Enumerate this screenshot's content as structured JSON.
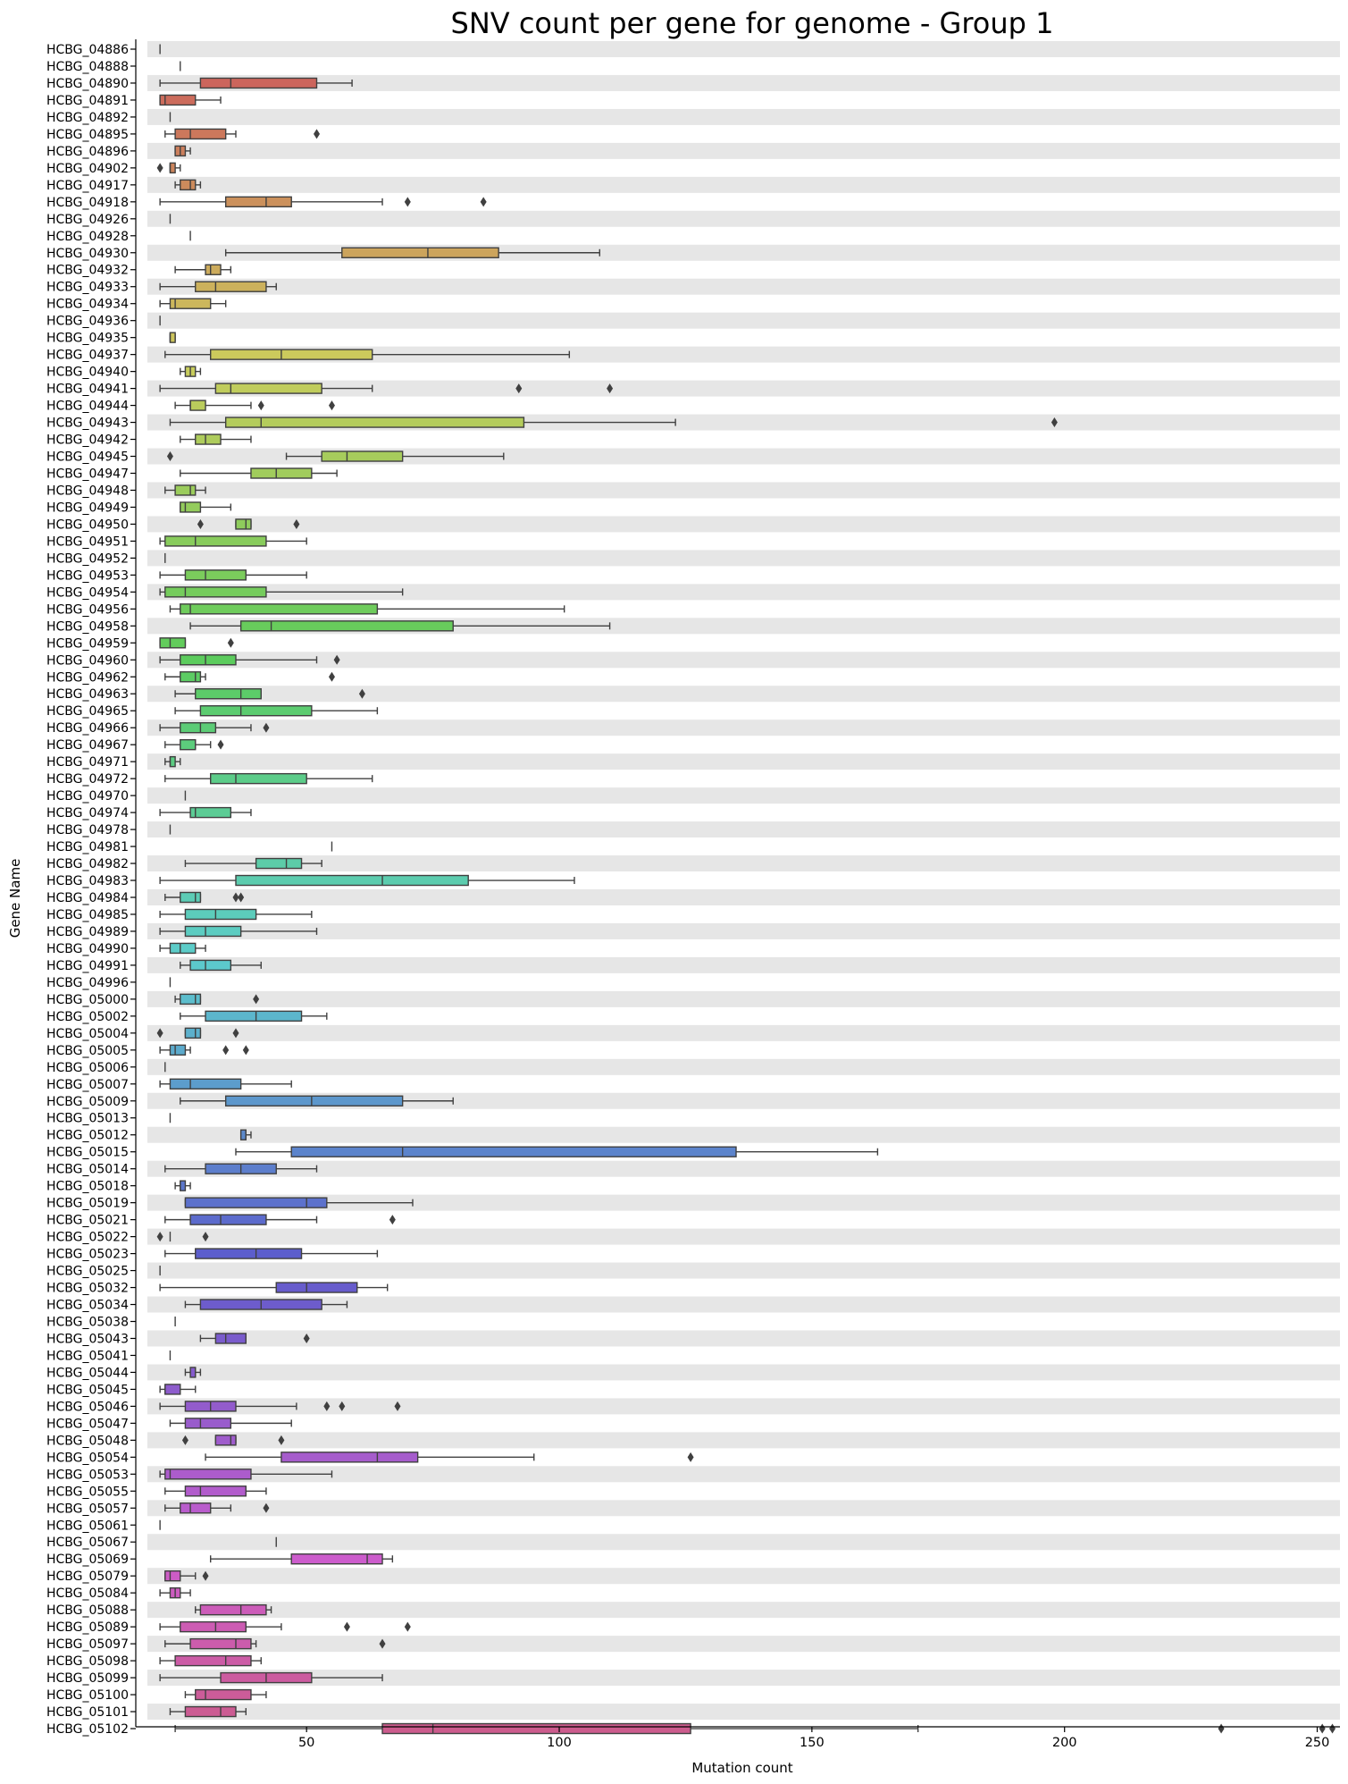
{
  "chart_data": {
    "type": "boxplot",
    "orientation": "horizontal",
    "title": "SNV count per gene for genome - Group 1",
    "xlabel": "Mutation count",
    "ylabel": "Gene Name",
    "xlim": [
      18.5,
      254.5
    ],
    "xticks": [
      50,
      100,
      150,
      200,
      250
    ],
    "alternating_bands": true,
    "genes": [
      {
        "name": "HCBG_04886",
        "min": 21,
        "q1": 21,
        "med": 21,
        "q3": 21,
        "max": 21,
        "fliers": []
      },
      {
        "name": "HCBG_04888",
        "min": 25,
        "q1": 25,
        "med": 25,
        "q3": 25,
        "max": 25,
        "fliers": []
      },
      {
        "name": "HCBG_04890",
        "min": 21,
        "q1": 29,
        "med": 35,
        "q3": 52,
        "max": 59,
        "fliers": []
      },
      {
        "name": "HCBG_04891",
        "min": 21,
        "q1": 21,
        "med": 22,
        "q3": 28,
        "max": 33,
        "fliers": []
      },
      {
        "name": "HCBG_04892",
        "min": 23,
        "q1": 23,
        "med": 23,
        "q3": 23,
        "max": 23,
        "fliers": []
      },
      {
        "name": "HCBG_04895",
        "min": 22,
        "q1": 24,
        "med": 27,
        "q3": 34,
        "max": 36,
        "fliers": [
          52
        ]
      },
      {
        "name": "HCBG_04896",
        "min": 24,
        "q1": 24,
        "med": 25,
        "q3": 26,
        "max": 27,
        "fliers": []
      },
      {
        "name": "HCBG_04902",
        "min": 23,
        "q1": 23,
        "med": 23,
        "q3": 24,
        "max": 25,
        "fliers": [
          21
        ]
      },
      {
        "name": "HCBG_04917",
        "min": 24,
        "q1": 25,
        "med": 27,
        "q3": 28,
        "max": 29,
        "fliers": []
      },
      {
        "name": "HCBG_04918",
        "min": 21,
        "q1": 34,
        "med": 42,
        "q3": 47,
        "max": 65,
        "fliers": [
          70,
          85
        ]
      },
      {
        "name": "HCBG_04926",
        "min": 23,
        "q1": 23,
        "med": 23,
        "q3": 23,
        "max": 23,
        "fliers": []
      },
      {
        "name": "HCBG_04928",
        "min": 27,
        "q1": 27,
        "med": 27,
        "q3": 27,
        "max": 27,
        "fliers": []
      },
      {
        "name": "HCBG_04930",
        "min": 34,
        "q1": 57,
        "med": 74,
        "q3": 88,
        "max": 108,
        "fliers": []
      },
      {
        "name": "HCBG_04932",
        "min": 24,
        "q1": 30,
        "med": 31,
        "q3": 33,
        "max": 35,
        "fliers": []
      },
      {
        "name": "HCBG_04933",
        "min": 21,
        "q1": 28,
        "med": 32,
        "q3": 42,
        "max": 44,
        "fliers": []
      },
      {
        "name": "HCBG_04934",
        "min": 21,
        "q1": 23,
        "med": 24,
        "q3": 31,
        "max": 34,
        "fliers": []
      },
      {
        "name": "HCBG_04936",
        "min": 21,
        "q1": 21,
        "med": 21,
        "q3": 21,
        "max": 21,
        "fliers": []
      },
      {
        "name": "HCBG_04935",
        "min": 23,
        "q1": 23,
        "med": 23,
        "q3": 24,
        "max": 24,
        "fliers": []
      },
      {
        "name": "HCBG_04937",
        "min": 22,
        "q1": 31,
        "med": 45,
        "q3": 63,
        "max": 102,
        "fliers": []
      },
      {
        "name": "HCBG_04940",
        "min": 25,
        "q1": 26,
        "med": 27,
        "q3": 28,
        "max": 29,
        "fliers": []
      },
      {
        "name": "HCBG_04941",
        "min": 21,
        "q1": 32,
        "med": 35,
        "q3": 53,
        "max": 63,
        "fliers": [
          92,
          110
        ]
      },
      {
        "name": "HCBG_04944",
        "min": 24,
        "q1": 27,
        "med": 27,
        "q3": 30,
        "max": 39,
        "fliers": [
          41,
          55
        ]
      },
      {
        "name": "HCBG_04943",
        "min": 23,
        "q1": 34,
        "med": 41,
        "q3": 93,
        "max": 123,
        "fliers": [
          198
        ]
      },
      {
        "name": "HCBG_04942",
        "min": 25,
        "q1": 28,
        "med": 30,
        "q3": 33,
        "max": 39,
        "fliers": []
      },
      {
        "name": "HCBG_04945",
        "min": 46,
        "q1": 53,
        "med": 58,
        "q3": 69,
        "max": 89,
        "fliers": [
          23
        ]
      },
      {
        "name": "HCBG_04947",
        "min": 25,
        "q1": 39,
        "med": 44,
        "q3": 51,
        "max": 56,
        "fliers": []
      },
      {
        "name": "HCBG_04948",
        "min": 22,
        "q1": 24,
        "med": 27,
        "q3": 28,
        "max": 30,
        "fliers": []
      },
      {
        "name": "HCBG_04949",
        "min": 25,
        "q1": 25,
        "med": 26,
        "q3": 29,
        "max": 35,
        "fliers": []
      },
      {
        "name": "HCBG_04950",
        "min": 36,
        "q1": 36,
        "med": 38,
        "q3": 39,
        "max": 39,
        "fliers": [
          29,
          48
        ]
      },
      {
        "name": "HCBG_04951",
        "min": 21,
        "q1": 22,
        "med": 28,
        "q3": 42,
        "max": 50,
        "fliers": []
      },
      {
        "name": "HCBG_04952",
        "min": 22,
        "q1": 22,
        "med": 22,
        "q3": 22,
        "max": 22,
        "fliers": []
      },
      {
        "name": "HCBG_04953",
        "min": 21,
        "q1": 26,
        "med": 30,
        "q3": 38,
        "max": 50,
        "fliers": []
      },
      {
        "name": "HCBG_04954",
        "min": 21,
        "q1": 22,
        "med": 26,
        "q3": 42,
        "max": 69,
        "fliers": []
      },
      {
        "name": "HCBG_04956",
        "min": 23,
        "q1": 25,
        "med": 27,
        "q3": 64,
        "max": 101,
        "fliers": []
      },
      {
        "name": "HCBG_04958",
        "min": 27,
        "q1": 37,
        "med": 43,
        "q3": 79,
        "max": 110,
        "fliers": []
      },
      {
        "name": "HCBG_04959",
        "min": 21,
        "q1": 21,
        "med": 23,
        "q3": 26,
        "max": 26,
        "fliers": [
          35
        ]
      },
      {
        "name": "HCBG_04960",
        "min": 21,
        "q1": 25,
        "med": 30,
        "q3": 36,
        "max": 52,
        "fliers": [
          56
        ]
      },
      {
        "name": "HCBG_04962",
        "min": 22,
        "q1": 25,
        "med": 28,
        "q3": 29,
        "max": 30,
        "fliers": [
          55
        ]
      },
      {
        "name": "HCBG_04963",
        "min": 24,
        "q1": 28,
        "med": 37,
        "q3": 41,
        "max": 41,
        "fliers": [
          61
        ]
      },
      {
        "name": "HCBG_04965",
        "min": 24,
        "q1": 29,
        "med": 37,
        "q3": 51,
        "max": 64,
        "fliers": []
      },
      {
        "name": "HCBG_04966",
        "min": 21,
        "q1": 25,
        "med": 29,
        "q3": 32,
        "max": 39,
        "fliers": [
          42
        ]
      },
      {
        "name": "HCBG_04967",
        "min": 22,
        "q1": 25,
        "med": 28,
        "q3": 28,
        "max": 31,
        "fliers": [
          33
        ]
      },
      {
        "name": "HCBG_04971",
        "min": 22,
        "q1": 23,
        "med": 23,
        "q3": 24,
        "max": 25,
        "fliers": []
      },
      {
        "name": "HCBG_04972",
        "min": 22,
        "q1": 31,
        "med": 36,
        "q3": 50,
        "max": 63,
        "fliers": []
      },
      {
        "name": "HCBG_04970",
        "min": 26,
        "q1": 26,
        "med": 26,
        "q3": 26,
        "max": 26,
        "fliers": []
      },
      {
        "name": "HCBG_04974",
        "min": 21,
        "q1": 27,
        "med": 28,
        "q3": 35,
        "max": 39,
        "fliers": []
      },
      {
        "name": "HCBG_04978",
        "min": 23,
        "q1": 23,
        "med": 23,
        "q3": 23,
        "max": 23,
        "fliers": []
      },
      {
        "name": "HCBG_04981",
        "min": 55,
        "q1": 55,
        "med": 55,
        "q3": 55,
        "max": 55,
        "fliers": []
      },
      {
        "name": "HCBG_04982",
        "min": 26,
        "q1": 40,
        "med": 46,
        "q3": 49,
        "max": 53,
        "fliers": []
      },
      {
        "name": "HCBG_04983",
        "min": 21,
        "q1": 36,
        "med": 65,
        "q3": 82,
        "max": 103,
        "fliers": []
      },
      {
        "name": "HCBG_04984",
        "min": 22,
        "q1": 25,
        "med": 28,
        "q3": 29,
        "max": 29,
        "fliers": [
          36,
          37
        ]
      },
      {
        "name": "HCBG_04985",
        "min": 21,
        "q1": 26,
        "med": 32,
        "q3": 40,
        "max": 51,
        "fliers": []
      },
      {
        "name": "HCBG_04989",
        "min": 21,
        "q1": 26,
        "med": 30,
        "q3": 37,
        "max": 52,
        "fliers": []
      },
      {
        "name": "HCBG_04990",
        "min": 21,
        "q1": 23,
        "med": 25,
        "q3": 28,
        "max": 30,
        "fliers": []
      },
      {
        "name": "HCBG_04991",
        "min": 25,
        "q1": 27,
        "med": 30,
        "q3": 35,
        "max": 41,
        "fliers": []
      },
      {
        "name": "HCBG_04996",
        "min": 23,
        "q1": 23,
        "med": 23,
        "q3": 23,
        "max": 23,
        "fliers": []
      },
      {
        "name": "HCBG_05000",
        "min": 24,
        "q1": 25,
        "med": 28,
        "q3": 29,
        "max": 29,
        "fliers": [
          40
        ]
      },
      {
        "name": "HCBG_05002",
        "min": 25,
        "q1": 30,
        "med": 40,
        "q3": 49,
        "max": 54,
        "fliers": []
      },
      {
        "name": "HCBG_05004",
        "min": 26,
        "q1": 26,
        "med": 28,
        "q3": 29,
        "max": 29,
        "fliers": [
          21,
          36
        ]
      },
      {
        "name": "HCBG_05005",
        "min": 21,
        "q1": 23,
        "med": 24,
        "q3": 26,
        "max": 27,
        "fliers": [
          34,
          38
        ]
      },
      {
        "name": "HCBG_05006",
        "min": 22,
        "q1": 22,
        "med": 22,
        "q3": 22,
        "max": 22,
        "fliers": []
      },
      {
        "name": "HCBG_05007",
        "min": 21,
        "q1": 23,
        "med": 27,
        "q3": 37,
        "max": 47,
        "fliers": []
      },
      {
        "name": "HCBG_05009",
        "min": 25,
        "q1": 34,
        "med": 51,
        "q3": 69,
        "max": 79,
        "fliers": []
      },
      {
        "name": "HCBG_05013",
        "min": 23,
        "q1": 23,
        "med": 23,
        "q3": 23,
        "max": 23,
        "fliers": []
      },
      {
        "name": "HCBG_05012",
        "min": 37,
        "q1": 37,
        "med": 38,
        "q3": 38,
        "max": 39,
        "fliers": []
      },
      {
        "name": "HCBG_05015",
        "min": 36,
        "q1": 47,
        "med": 69,
        "q3": 135,
        "max": 163,
        "fliers": []
      },
      {
        "name": "HCBG_05014",
        "min": 22,
        "q1": 30,
        "med": 37,
        "q3": 44,
        "max": 52,
        "fliers": []
      },
      {
        "name": "HCBG_05018",
        "min": 24,
        "q1": 25,
        "med": 25,
        "q3": 26,
        "max": 27,
        "fliers": []
      },
      {
        "name": "HCBG_05019",
        "min": 26,
        "q1": 26,
        "med": 50,
        "q3": 54,
        "max": 71,
        "fliers": []
      },
      {
        "name": "HCBG_05021",
        "min": 22,
        "q1": 27,
        "med": 33,
        "q3": 42,
        "max": 52,
        "fliers": [
          67
        ]
      },
      {
        "name": "HCBG_05022",
        "min": 23,
        "q1": 23,
        "med": 23,
        "q3": 23,
        "max": 23,
        "fliers": [
          21,
          30
        ]
      },
      {
        "name": "HCBG_05023",
        "min": 22,
        "q1": 28,
        "med": 40,
        "q3": 49,
        "max": 64,
        "fliers": []
      },
      {
        "name": "HCBG_05025",
        "min": 21,
        "q1": 21,
        "med": 21,
        "q3": 21,
        "max": 21,
        "fliers": []
      },
      {
        "name": "HCBG_05032",
        "min": 21,
        "q1": 44,
        "med": 50,
        "q3": 60,
        "max": 66,
        "fliers": []
      },
      {
        "name": "HCBG_05034",
        "min": 26,
        "q1": 29,
        "med": 41,
        "q3": 53,
        "max": 58,
        "fliers": []
      },
      {
        "name": "HCBG_05038",
        "min": 24,
        "q1": 24,
        "med": 24,
        "q3": 24,
        "max": 24,
        "fliers": []
      },
      {
        "name": "HCBG_05043",
        "min": 29,
        "q1": 32,
        "med": 34,
        "q3": 38,
        "max": 38,
        "fliers": [
          50
        ]
      },
      {
        "name": "HCBG_05041",
        "min": 23,
        "q1": 23,
        "med": 23,
        "q3": 23,
        "max": 23,
        "fliers": []
      },
      {
        "name": "HCBG_05044",
        "min": 26,
        "q1": 27,
        "med": 28,
        "q3": 28,
        "max": 29,
        "fliers": []
      },
      {
        "name": "HCBG_05045",
        "min": 21,
        "q1": 22,
        "med": 22,
        "q3": 25,
        "max": 28,
        "fliers": []
      },
      {
        "name": "HCBG_05046",
        "min": 21,
        "q1": 26,
        "med": 31,
        "q3": 36,
        "max": 48,
        "fliers": [
          54,
          57,
          68
        ]
      },
      {
        "name": "HCBG_05047",
        "min": 23,
        "q1": 26,
        "med": 29,
        "q3": 35,
        "max": 47,
        "fliers": []
      },
      {
        "name": "HCBG_05048",
        "min": 32,
        "q1": 32,
        "med": 35,
        "q3": 36,
        "max": 36,
        "fliers": [
          26,
          45
        ]
      },
      {
        "name": "HCBG_05054",
        "min": 30,
        "q1": 45,
        "med": 64,
        "q3": 72,
        "max": 95,
        "fliers": [
          126
        ]
      },
      {
        "name": "HCBG_05053",
        "min": 21,
        "q1": 22,
        "med": 23,
        "q3": 39,
        "max": 55,
        "fliers": []
      },
      {
        "name": "HCBG_05055",
        "min": 22,
        "q1": 26,
        "med": 29,
        "q3": 38,
        "max": 42,
        "fliers": []
      },
      {
        "name": "HCBG_05057",
        "min": 22,
        "q1": 25,
        "med": 27,
        "q3": 31,
        "max": 35,
        "fliers": [
          42
        ]
      },
      {
        "name": "HCBG_05061",
        "min": 21,
        "q1": 21,
        "med": 21,
        "q3": 21,
        "max": 21,
        "fliers": []
      },
      {
        "name": "HCBG_05067",
        "min": 44,
        "q1": 44,
        "med": 44,
        "q3": 44,
        "max": 44,
        "fliers": []
      },
      {
        "name": "HCBG_05069",
        "min": 31,
        "q1": 47,
        "med": 62,
        "q3": 65,
        "max": 67,
        "fliers": []
      },
      {
        "name": "HCBG_05079",
        "min": 22,
        "q1": 22,
        "med": 23,
        "q3": 25,
        "max": 28,
        "fliers": [
          30
        ]
      },
      {
        "name": "HCBG_05084",
        "min": 21,
        "q1": 23,
        "med": 24,
        "q3": 25,
        "max": 27,
        "fliers": []
      },
      {
        "name": "HCBG_05088",
        "min": 28,
        "q1": 29,
        "med": 37,
        "q3": 42,
        "max": 43,
        "fliers": []
      },
      {
        "name": "HCBG_05089",
        "min": 21,
        "q1": 25,
        "med": 32,
        "q3": 38,
        "max": 45,
        "fliers": [
          58,
          70
        ]
      },
      {
        "name": "HCBG_05097",
        "min": 22,
        "q1": 27,
        "med": 36,
        "q3": 39,
        "max": 40,
        "fliers": [
          65
        ]
      },
      {
        "name": "HCBG_05098",
        "min": 21,
        "q1": 24,
        "med": 34,
        "q3": 39,
        "max": 41,
        "fliers": []
      },
      {
        "name": "HCBG_05099",
        "min": 21,
        "q1": 33,
        "med": 42,
        "q3": 51,
        "max": 65,
        "fliers": []
      },
      {
        "name": "HCBG_05100",
        "min": 26,
        "q1": 28,
        "med": 30,
        "q3": 39,
        "max": 42,
        "fliers": []
      },
      {
        "name": "HCBG_05101",
        "min": 23,
        "q1": 26,
        "med": 33,
        "q3": 36,
        "max": 38,
        "fliers": []
      },
      {
        "name": "HCBG_05102",
        "min": 24,
        "q1": 65,
        "med": 75,
        "q3": 126,
        "max": 171,
        "fliers": [
          231,
          251,
          253
        ]
      }
    ]
  },
  "colors": {
    "band": "#e6e6e6",
    "line": "#404040",
    "palette_start": "#e8878a",
    "palette_end": "#df8aaf"
  }
}
